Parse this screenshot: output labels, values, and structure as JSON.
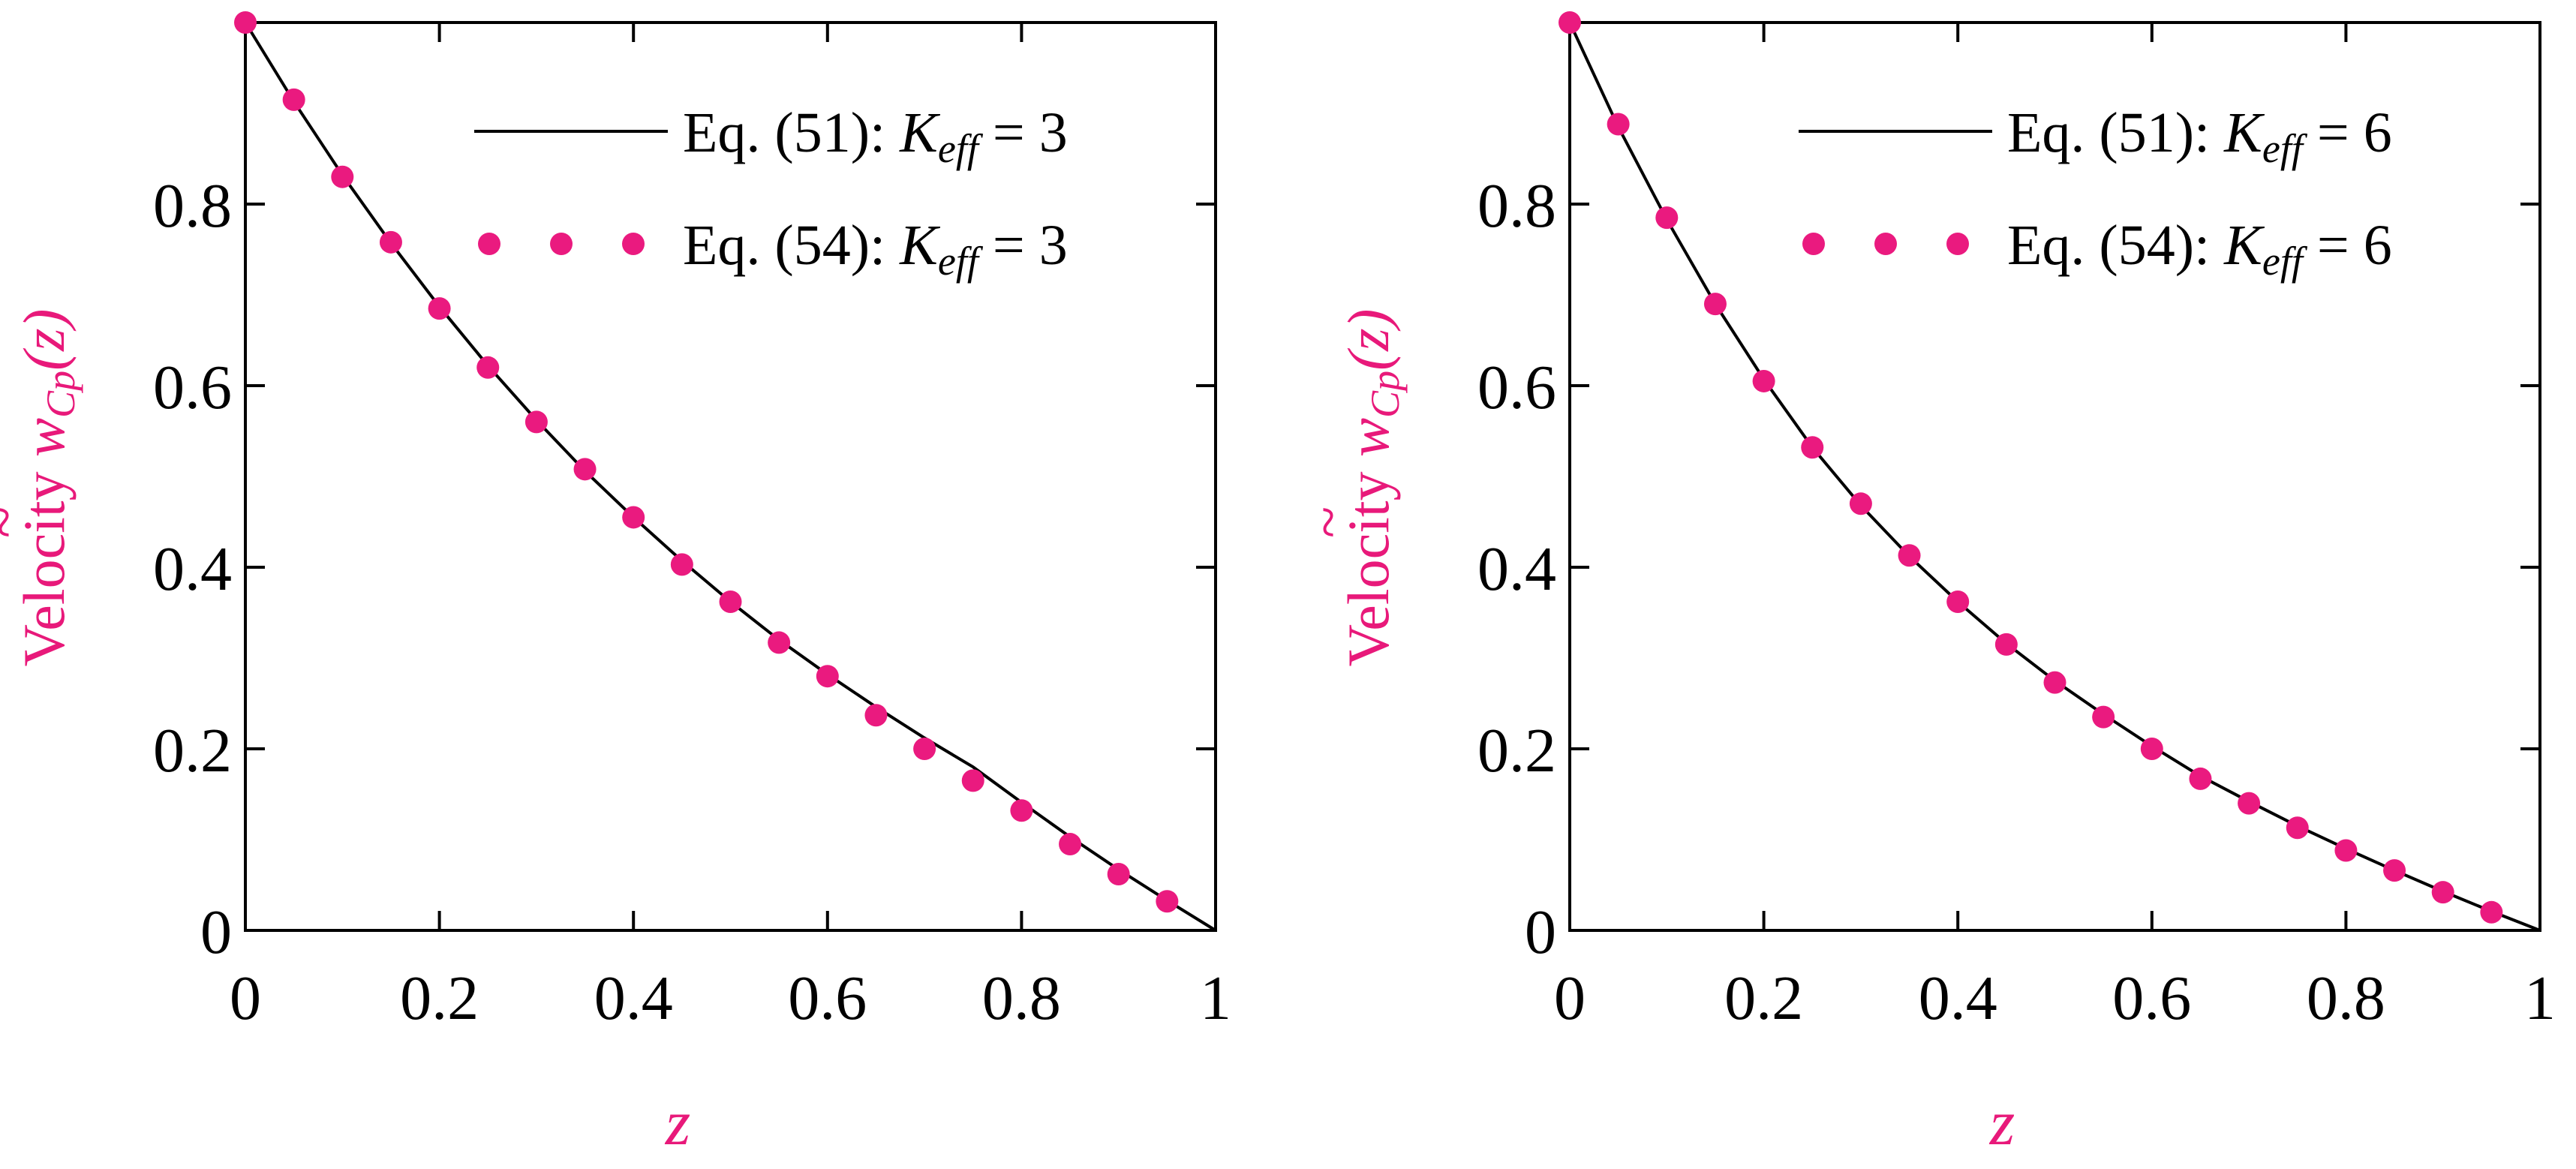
{
  "colors": {
    "curve": "#000000",
    "markers": "#ea1a7f",
    "axis_label": "#e8197a"
  },
  "chart_data": [
    {
      "type": "line",
      "title": "",
      "xlabel": "z",
      "ylabel": {
        "prefix": "Velocity",
        "symbol": "w",
        "subscript": "Cp",
        "arg": "(z)"
      },
      "xlim": [
        0,
        1
      ],
      "ylim": [
        0,
        1
      ],
      "xticks": [
        "0",
        "0.2",
        "0.4",
        "0.6",
        "0.8",
        "1"
      ],
      "xtick_values": [
        0,
        0.2,
        0.4,
        0.6,
        0.8,
        1
      ],
      "yticks": [
        "0",
        "0.2",
        "0.4",
        "0.6",
        "0.8"
      ],
      "ytick_values": [
        0,
        0.2,
        0.4,
        0.6,
        0.8
      ],
      "legend_position": "top-right",
      "series": [
        {
          "name": "Eq. (51): K_eff = 3",
          "label_prefix": "Eq. (51):",
          "k_symbol": "K",
          "k_subscript": "eff",
          "k_value": "= 3",
          "style": "line",
          "x": [
            0,
            0.05,
            0.1,
            0.15,
            0.2,
            0.25,
            0.3,
            0.35,
            0.4,
            0.45,
            0.5,
            0.55,
            0.6,
            0.65,
            0.7,
            0.75,
            0.8,
            0.85,
            0.9,
            0.95,
            1.0
          ],
          "y": [
            1.0,
            0.913,
            0.832,
            0.757,
            0.687,
            0.622,
            0.562,
            0.506,
            0.455,
            0.407,
            0.362,
            0.32,
            0.282,
            0.246,
            0.212,
            0.18,
            0.141,
            0.103,
            0.067,
            0.033,
            0.0
          ]
        },
        {
          "name": "Eq. (54): K_eff = 3",
          "label_prefix": "Eq. (54):",
          "k_symbol": "K",
          "k_subscript": "eff",
          "k_value": "= 3",
          "style": "markers",
          "x": [
            0,
            0.05,
            0.1,
            0.15,
            0.2,
            0.25,
            0.3,
            0.35,
            0.4,
            0.45,
            0.5,
            0.55,
            0.6,
            0.65,
            0.7,
            0.75,
            0.8,
            0.85,
            0.9,
            0.95
          ],
          "y": [
            1.0,
            0.915,
            0.83,
            0.758,
            0.685,
            0.62,
            0.56,
            0.508,
            0.455,
            0.403,
            0.362,
            0.317,
            0.28,
            0.237,
            0.2,
            0.165,
            0.132,
            0.095,
            0.062,
            0.032
          ]
        }
      ]
    },
    {
      "type": "line",
      "title": "",
      "xlabel": "z",
      "ylabel": {
        "prefix": "Velocity",
        "symbol": "w",
        "subscript": "Cp",
        "arg": "(z)"
      },
      "xlim": [
        0,
        1
      ],
      "ylim": [
        0,
        1
      ],
      "xticks": [
        "0",
        "0.2",
        "0.4",
        "0.6",
        "0.8",
        "1"
      ],
      "xtick_values": [
        0,
        0.2,
        0.4,
        0.6,
        0.8,
        1
      ],
      "yticks": [
        "0",
        "0.2",
        "0.4",
        "0.6",
        "0.8"
      ],
      "ytick_values": [
        0,
        0.2,
        0.4,
        0.6,
        0.8
      ],
      "legend_position": "top-right",
      "series": [
        {
          "name": "Eq. (51): K_eff = 6",
          "label_prefix": "Eq. (51):",
          "k_symbol": "K",
          "k_subscript": "eff",
          "k_value": "= 6",
          "style": "line",
          "x": [
            0,
            0.05,
            0.1,
            0.15,
            0.2,
            0.25,
            0.3,
            0.35,
            0.4,
            0.45,
            0.5,
            0.55,
            0.6,
            0.65,
            0.7,
            0.75,
            0.8,
            0.85,
            0.9,
            0.95,
            1.0
          ],
          "y": [
            1.0,
            0.885,
            0.783,
            0.69,
            0.607,
            0.532,
            0.468,
            0.412,
            0.362,
            0.316,
            0.275,
            0.238,
            0.203,
            0.17,
            0.142,
            0.115,
            0.09,
            0.066,
            0.043,
            0.021,
            0.0
          ]
        },
        {
          "name": "Eq. (54): K_eff = 6",
          "label_prefix": "Eq. (54):",
          "k_symbol": "K",
          "k_subscript": "eff",
          "k_value": "= 6",
          "style": "markers",
          "x": [
            0,
            0.05,
            0.1,
            0.15,
            0.2,
            0.25,
            0.3,
            0.35,
            0.4,
            0.45,
            0.5,
            0.55,
            0.6,
            0.65,
            0.7,
            0.75,
            0.8,
            0.85,
            0.9,
            0.95
          ],
          "y": [
            1.0,
            0.888,
            0.785,
            0.69,
            0.605,
            0.532,
            0.47,
            0.413,
            0.362,
            0.315,
            0.273,
            0.235,
            0.2,
            0.167,
            0.14,
            0.113,
            0.088,
            0.066,
            0.042,
            0.02
          ]
        }
      ]
    }
  ]
}
